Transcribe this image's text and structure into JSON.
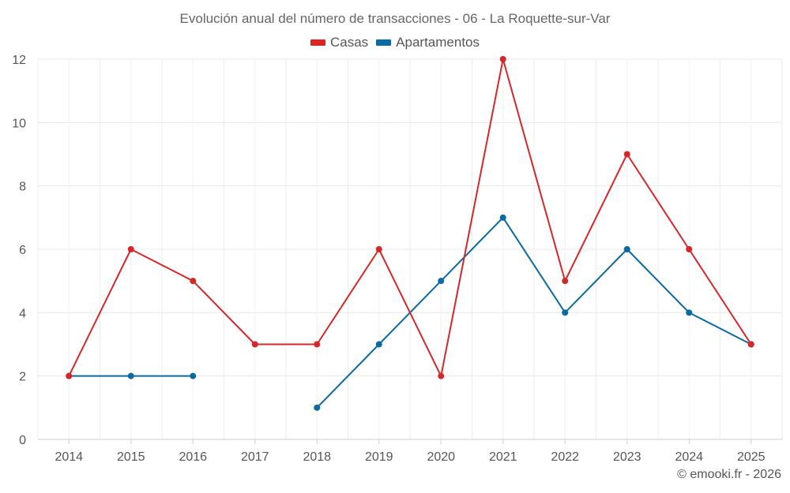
{
  "chart_data": {
    "type": "line",
    "title": "Evolución anual del número de transacciones - 06 - La Roquette-sur-Var",
    "xlabel": "",
    "ylabel": "",
    "categories": [
      "2014",
      "2015",
      "2016",
      "2017",
      "2018",
      "2019",
      "2020",
      "2021",
      "2022",
      "2023",
      "2024",
      "2025"
    ],
    "ylim": [
      0,
      12
    ],
    "yticks": [
      0,
      2,
      4,
      6,
      8,
      10,
      12
    ],
    "grid": true,
    "legend_position": "top-center",
    "series": [
      {
        "name": "Casas",
        "color": "#d62728",
        "values": [
          2,
          6,
          5,
          3,
          3,
          6,
          2,
          12,
          5,
          9,
          6,
          3
        ]
      },
      {
        "name": "Apartamentos",
        "color": "#0b6aa2",
        "values": [
          2,
          2,
          2,
          null,
          1,
          3,
          5,
          7,
          4,
          6,
          4,
          3
        ]
      }
    ]
  },
  "credit": "© emooki.fr - 2026"
}
